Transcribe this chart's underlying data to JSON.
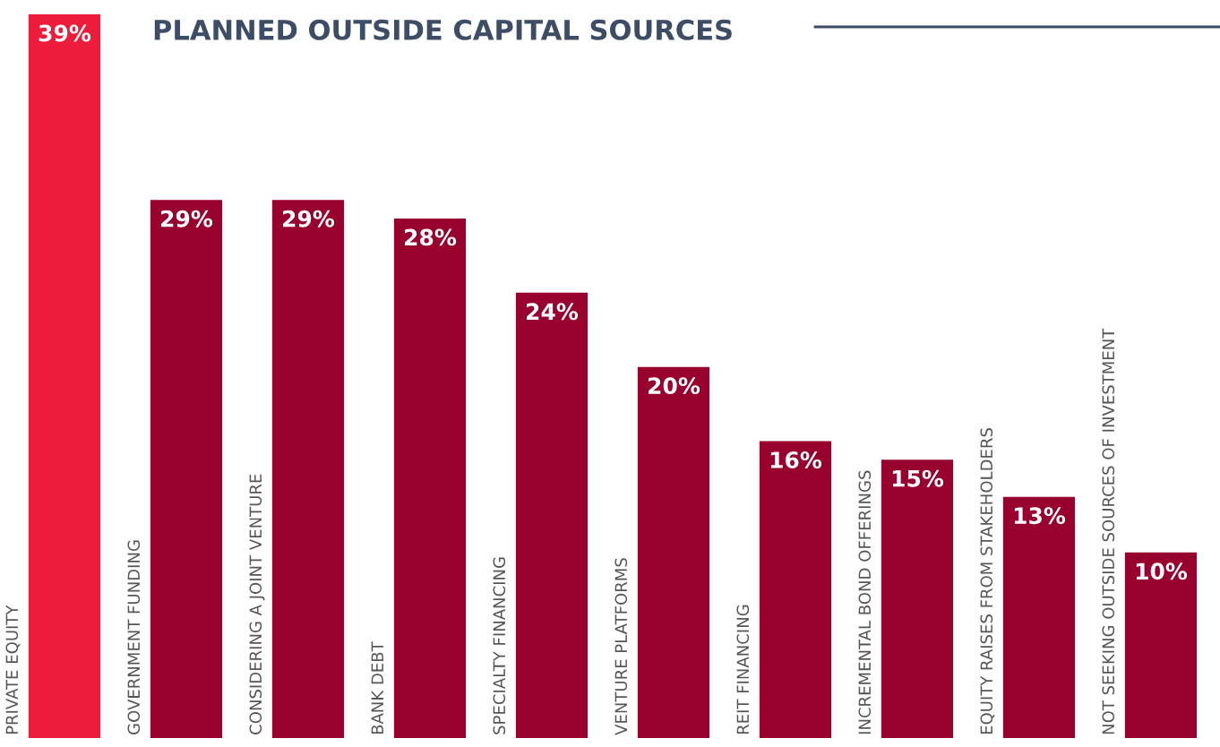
{
  "chart_data": {
    "type": "bar",
    "title": "PLANNED OUTSIDE CAPITAL SOURCES",
    "categories": [
      "PRIVATE EQUITY",
      "GOVERNMENT FUNDING",
      "CONSIDERING A JOINT VENTURE",
      "BANK DEBT",
      "SPECIALTY FINANCING",
      "VENTURE PLATFORMS",
      "REIT FINANCING",
      "INCREMENTAL BOND OFFERINGS",
      "EQUITY RAISES FROM STAKEHOLDERS",
      "NOT SEEKING OUTSIDE SOURCES OF INVESTMENT"
    ],
    "values": [
      39,
      29,
      29,
      28,
      24,
      20,
      16,
      15,
      13,
      10
    ],
    "value_labels": [
      "39%",
      "29%",
      "29%",
      "28%",
      "24%",
      "20%",
      "16%",
      "15%",
      "13%",
      "10%"
    ],
    "colors": [
      "#ee1c3b",
      "#98002e",
      "#98002e",
      "#98002e",
      "#98002e",
      "#98002e",
      "#98002e",
      "#98002e",
      "#98002e",
      "#98002e"
    ],
    "data_labels": false
  }
}
